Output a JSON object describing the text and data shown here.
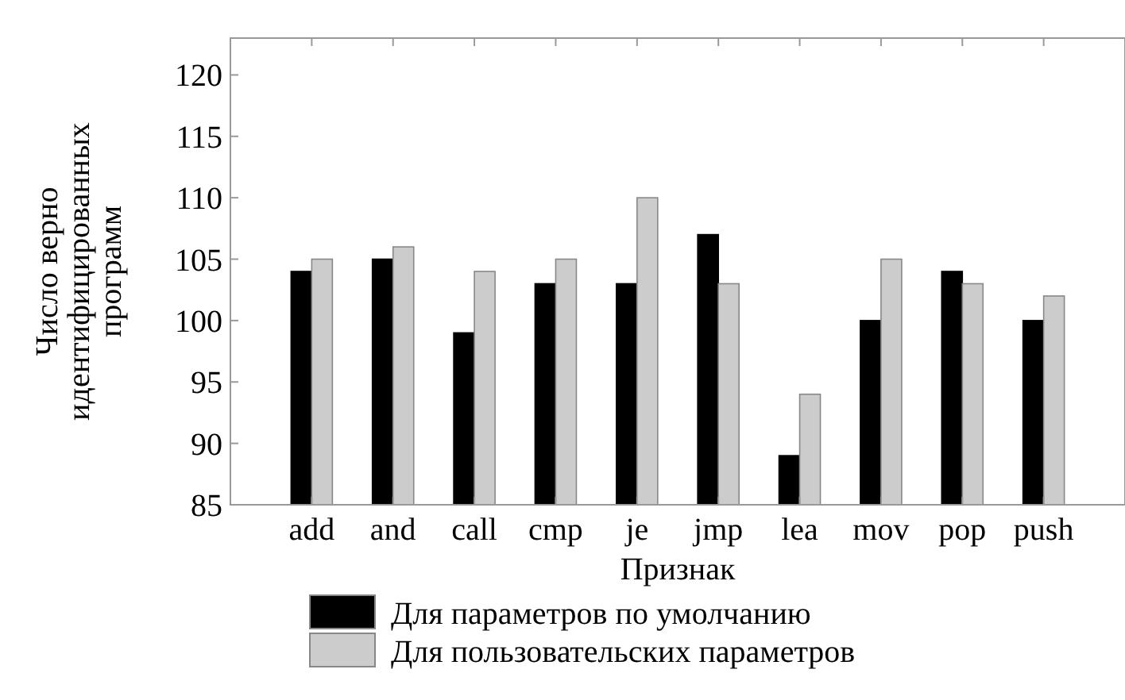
{
  "chart_data": {
    "type": "bar",
    "xlabel": "Признак",
    "ylabel": "Число верно идентифицированных программ",
    "categories": [
      "add",
      "and",
      "call",
      "cmp",
      "je",
      "jmp",
      "lea",
      "mov",
      "pop",
      "push"
    ],
    "series": [
      {
        "name": "Для параметров по умолчанию",
        "color": "#000000",
        "values": [
          104,
          105,
          99,
          103,
          103,
          107,
          89,
          100,
          104,
          100
        ]
      },
      {
        "name": "Для пользовательских параметров",
        "color": "#cccccc",
        "values": [
          105,
          106,
          104,
          105,
          110,
          103,
          94,
          105,
          103,
          102
        ]
      }
    ],
    "ylim": [
      85,
      123
    ],
    "yticks": [
      85,
      90,
      95,
      100,
      105,
      110,
      115,
      120
    ],
    "grid": false,
    "legend": "bottom"
  }
}
